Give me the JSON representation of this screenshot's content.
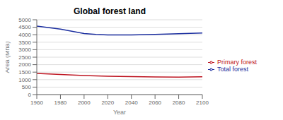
{
  "chart_data": {
    "type": "line",
    "title": "Global forest land",
    "xlabel": "Year",
    "ylabel": "Area (Mha)",
    "x": [
      1960,
      1980,
      2000,
      2010,
      2020,
      2030,
      2040,
      2060,
      2080,
      2100
    ],
    "series": [
      {
        "name": "Total forest",
        "color": "#1c2fa0",
        "values": [
          4580,
          4380,
          4080,
          4020,
          3990,
          3980,
          3990,
          4020,
          4070,
          4110
        ]
      },
      {
        "name": "Primary forest",
        "color": "#be1622",
        "values": [
          1420,
          1340,
          1270,
          1245,
          1230,
          1215,
          1200,
          1180,
          1165,
          1195
        ]
      }
    ],
    "xlim": [
      1960,
      2100
    ],
    "ylim": [
      0,
      5000
    ],
    "xticks": [
      1960,
      1980,
      2000,
      2020,
      2040,
      2060,
      2080,
      2100
    ],
    "yticks": [
      0,
      500,
      1000,
      1500,
      2000,
      2500,
      3000,
      3500,
      4000,
      4500,
      5000
    ],
    "grid": "y",
    "legend": "right"
  }
}
